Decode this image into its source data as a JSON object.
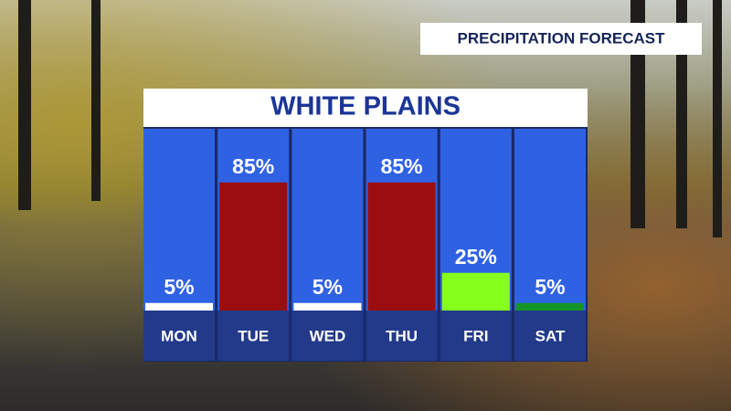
{
  "chart_data": {
    "type": "bar",
    "tag": "PRECIPITATION FORECAST",
    "title": "WHITE PLAINS",
    "categories": [
      "MON",
      "TUE",
      "WED",
      "THU",
      "FRI",
      "SAT"
    ],
    "values": [
      5,
      85,
      5,
      85,
      25,
      5
    ],
    "value_labels": [
      "5%",
      "85%",
      "5%",
      "85%",
      "25%",
      "5%"
    ],
    "colors": [
      "#ffffff",
      "#9a0e10",
      "#ffffff",
      "#9a0e10",
      "#86ff1c",
      "#14952a"
    ]
  }
}
